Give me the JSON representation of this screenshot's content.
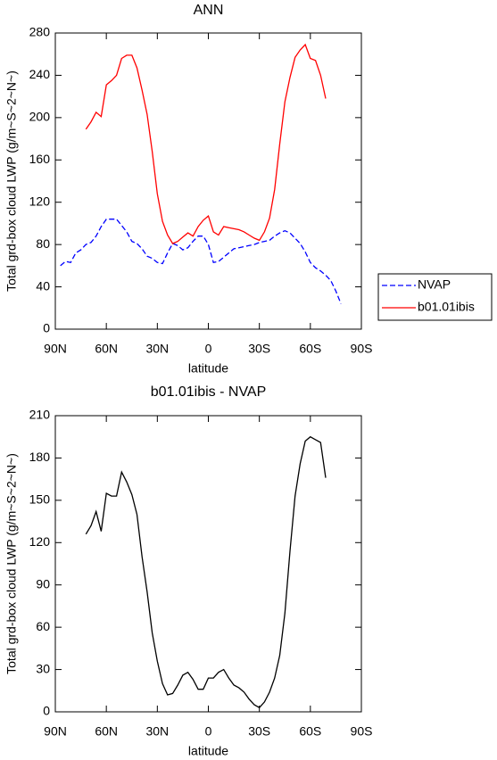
{
  "chart_data": [
    {
      "type": "line",
      "title": "ANN",
      "xlabel": "latitude",
      "ylabel": "Total grd-box cloud LWP (g/m~S~2~N~)",
      "x": [
        87,
        84,
        81,
        78,
        75,
        72,
        69,
        66,
        63,
        60,
        57,
        54,
        51,
        48,
        45,
        42,
        39,
        36,
        33,
        30,
        27,
        24,
        21,
        18,
        15,
        12,
        9,
        6,
        3,
        0,
        -3,
        -6,
        -9,
        -12,
        -15,
        -18,
        -21,
        -24,
        -27,
        -30,
        -33,
        -36,
        -39,
        -42,
        -45,
        -48,
        -51,
        -54,
        -57,
        -60,
        -63,
        -66,
        -69,
        -72,
        -75,
        -78
      ],
      "series": [
        {
          "name": "NVAP",
          "color": "#0000ff",
          "dash": true,
          "values": [
            60,
            64,
            63,
            72,
            75,
            80,
            82,
            88,
            97,
            104,
            104,
            104,
            98,
            92,
            83,
            81,
            76,
            69,
            67,
            63,
            62,
            72,
            81,
            79,
            75,
            77,
            83,
            88,
            88,
            80,
            63,
            64,
            68,
            72,
            76,
            77,
            78,
            79,
            80,
            82,
            83,
            84,
            88,
            91,
            93,
            91,
            86,
            81,
            73,
            63,
            58,
            55,
            51,
            46,
            36,
            24
          ]
        },
        {
          "name": "b01.01ibis",
          "color": "#ff0000",
          "dash": false,
          "values": [
            null,
            null,
            null,
            null,
            null,
            189,
            196,
            205,
            201,
            231,
            235,
            240,
            256,
            259,
            259,
            247,
            226,
            203,
            168,
            128,
            102,
            89,
            81,
            83,
            87,
            91,
            88,
            97,
            103,
            107,
            92,
            89,
            97,
            96,
            95,
            94,
            92,
            89,
            86,
            84,
            92,
            105,
            132,
            175,
            215,
            238,
            257,
            264,
            269,
            256,
            254,
            240,
            218,
            null,
            null,
            null
          ]
        }
      ],
      "xlim": [
        90,
        -90
      ],
      "xticks": [
        {
          "value": 90,
          "label": "90N"
        },
        {
          "value": 60,
          "label": "60N"
        },
        {
          "value": 30,
          "label": "30N"
        },
        0,
        {
          "value": -30,
          "label": "30S"
        },
        {
          "value": -60,
          "label": "60S"
        },
        {
          "value": -90,
          "label": "90S"
        }
      ],
      "ylim": [
        0,
        280
      ],
      "yticks": [
        0,
        40,
        80,
        120,
        160,
        200,
        240,
        280
      ],
      "legend": "right"
    },
    {
      "type": "line",
      "title": "b01.01ibis - NVAP",
      "xlabel": "latitude",
      "ylabel": "Total grd-box cloud LWP (g/m~S~2~N~)",
      "x": [
        72,
        69,
        66,
        63,
        60,
        57,
        54,
        51,
        48,
        45,
        42,
        39,
        36,
        33,
        30,
        27,
        24,
        21,
        18,
        15,
        12,
        9,
        6,
        3,
        0,
        -3,
        -6,
        -9,
        -12,
        -15,
        -18,
        -21,
        -24,
        -27,
        -30,
        -33,
        -36,
        -39,
        -42,
        -45,
        -48,
        -51,
        -54,
        -57,
        -60,
        -63,
        -66,
        -69
      ],
      "series": [
        {
          "color": "#000000",
          "dash": false,
          "values": [
            126,
            132,
            142,
            128,
            155,
            153,
            153,
            170,
            163,
            154,
            140,
            110,
            85,
            56,
            36,
            20,
            12,
            13,
            19,
            26,
            28,
            23,
            16,
            16,
            24,
            24,
            28,
            30,
            24,
            19,
            17,
            14,
            9,
            5,
            3,
            7,
            14,
            24,
            40,
            70,
            114,
            153,
            176,
            192,
            195,
            193,
            191,
            166
          ]
        }
      ],
      "xlim": [
        90,
        -90
      ],
      "xticks": [
        {
          "value": 90,
          "label": "90N"
        },
        {
          "value": 60,
          "label": "60N"
        },
        {
          "value": 30,
          "label": "30N"
        },
        0,
        {
          "value": -30,
          "label": "30S"
        },
        {
          "value": -60,
          "label": "60S"
        },
        {
          "value": -90,
          "label": "90S"
        }
      ],
      "ylim": [
        0,
        210
      ],
      "yticks": [
        0,
        30,
        60,
        90,
        120,
        150,
        180,
        210
      ]
    }
  ]
}
